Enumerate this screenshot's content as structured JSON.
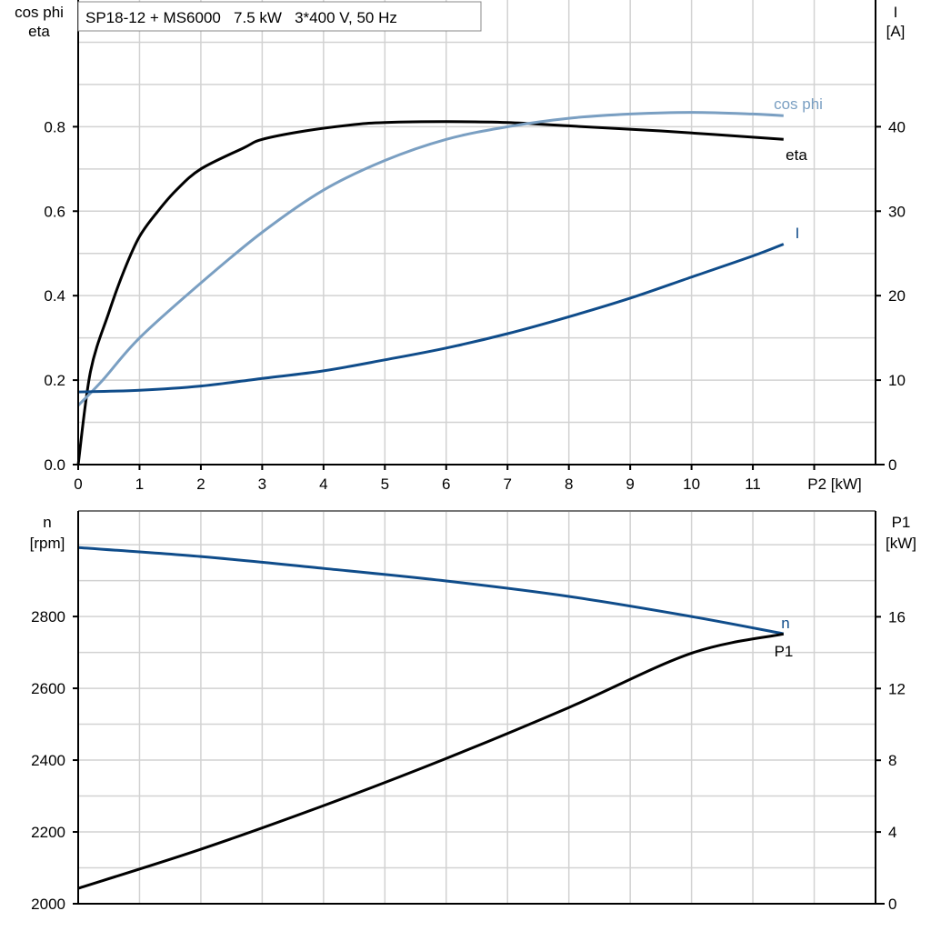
{
  "chart_data": [
    {
      "type": "line",
      "title": "SP18-12 + MS6000   7.5 kW   3*400 V, 50 Hz",
      "xlabel": "P2 [kW]",
      "ylabel_left": [
        "cos phi",
        "eta"
      ],
      "ylabel_right": [
        "I",
        "[A]"
      ],
      "xlim": [
        0,
        13
      ],
      "ylim_left": [
        0,
        1.1
      ],
      "ylim_right": [
        0,
        55
      ],
      "x_ticks": [
        0,
        1,
        2,
        3,
        4,
        5,
        6,
        7,
        8,
        9,
        10,
        11
      ],
      "y_ticks_left": [
        "0.0",
        "0.2",
        "0.4",
        "0.6",
        "0.8"
      ],
      "y_ticks_right": [
        "0",
        "10",
        "20",
        "30",
        "40"
      ],
      "grid": true,
      "series": [
        {
          "name": "eta",
          "axis": "left",
          "color": "#000000",
          "x": [
            0,
            0.2,
            0.5,
            0.75,
            1,
            1.3,
            1.6,
            2,
            2.7,
            3,
            3.7,
            4.5,
            5,
            6,
            7,
            8,
            9.5,
            11.5
          ],
          "y": [
            0,
            0.22,
            0.36,
            0.46,
            0.54,
            0.6,
            0.65,
            0.7,
            0.75,
            0.77,
            0.79,
            0.805,
            0.81,
            0.812,
            0.81,
            0.802,
            0.79,
            0.77
          ]
        },
        {
          "name": "cos phi",
          "axis": "left",
          "color": "#7a9fc2",
          "x": [
            0,
            0.4,
            1,
            2,
            3,
            4,
            5,
            6,
            7,
            8,
            9,
            10,
            11,
            11.5
          ],
          "y": [
            0.14,
            0.2,
            0.3,
            0.43,
            0.55,
            0.65,
            0.72,
            0.77,
            0.8,
            0.82,
            0.83,
            0.834,
            0.83,
            0.826
          ]
        },
        {
          "name": "I",
          "axis": "right",
          "color": "#0f4c8a",
          "x": [
            0,
            1,
            2,
            3,
            4,
            5,
            6,
            7,
            8,
            9,
            10,
            11,
            11.5
          ],
          "y": [
            8.6,
            8.8,
            9.3,
            10.2,
            11.1,
            12.4,
            13.8,
            15.5,
            17.5,
            19.7,
            22.2,
            24.7,
            26.1
          ]
        }
      ]
    },
    {
      "type": "line",
      "ylabel_left": [
        "n",
        "[rpm]"
      ],
      "ylabel_right": [
        "P1",
        "[kW]"
      ],
      "xlim": [
        0,
        13
      ],
      "ylim_left": [
        2000,
        3094
      ],
      "ylim_right": [
        0,
        21.9
      ],
      "y_ticks_left": [
        "2000",
        "2200",
        "2400",
        "2600",
        "2800"
      ],
      "y_ticks_right": [
        "0",
        "4",
        "8",
        "12",
        "16"
      ],
      "grid": true,
      "series": [
        {
          "name": "n",
          "axis": "left",
          "color": "#0f4c8a",
          "x": [
            0,
            2,
            4,
            6,
            8,
            10,
            11.5
          ],
          "y": [
            2992,
            2967,
            2934,
            2899,
            2856,
            2800,
            2752
          ]
        },
        {
          "name": "P1",
          "axis": "right",
          "color": "#000000",
          "x": [
            0,
            2,
            4,
            6,
            8,
            10,
            11.5
          ],
          "y": [
            0.86,
            3.04,
            5.47,
            8.1,
            10.94,
            13.97,
            15.04
          ]
        }
      ]
    }
  ]
}
